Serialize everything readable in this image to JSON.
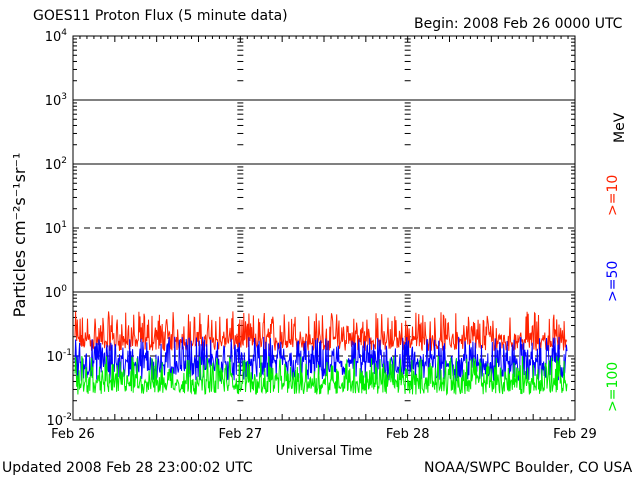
{
  "header": {
    "title": "GOES11 Proton Flux (5 minute data)",
    "begin": "Begin: 2008 Feb 26 0000 UTC"
  },
  "footer": {
    "updated": "Updated 2008 Feb 28 23:00:02 UTC",
    "credit": "NOAA/SWPC Boulder, CO USA"
  },
  "colors": {
    "ge10": "#ff2200",
    "ge50": "#0000ff",
    "ge100": "#00ee00",
    "axis": "#000000"
  },
  "legend": {
    "unit": "MeV",
    "items": [
      {
        "label": ">=10",
        "color": "#ff2200"
      },
      {
        "label": ">=50",
        "color": "#0000ff"
      },
      {
        "label": ">=100",
        "color": "#00ee00"
      }
    ]
  },
  "chart_data": {
    "type": "line",
    "title": "GOES11 Proton Flux (5 minute data)",
    "xlabel": "Universal Time",
    "ylabel": "Particles cm⁻²s⁻¹sr⁻¹",
    "yscale": "log",
    "ylim": [
      0.01,
      10000
    ],
    "xlim": [
      "2008-02-26T00:00",
      "2008-02-29T00:00"
    ],
    "x_ticks": [
      "Feb 26",
      "Feb 27",
      "Feb 28",
      "Feb 29"
    ],
    "y_ticks": [
      {
        "value": 10000,
        "label": "10",
        "exp": "4"
      },
      {
        "value": 1000,
        "label": "10",
        "exp": "3"
      },
      {
        "value": 100,
        "label": "10",
        "exp": "2"
      },
      {
        "value": 10,
        "label": "10",
        "exp": "1"
      },
      {
        "value": 1,
        "label": "10",
        "exp": "0"
      },
      {
        "value": 0.1,
        "label": "10",
        "exp": "-1"
      },
      {
        "value": 0.01,
        "label": "10",
        "exp": "-2"
      }
    ],
    "grid": true,
    "dashed_gridlines": [
      10,
      0.1
    ],
    "legend_placement": "right, rotated",
    "series": [
      {
        "name": ">=10 MeV",
        "color": "#ff2200",
        "typical": 0.18,
        "min": 0.12,
        "max": 0.5
      },
      {
        "name": ">=50 MeV",
        "color": "#0000ff",
        "typical": 0.08,
        "min": 0.04,
        "max": 0.2
      },
      {
        "name": ">=100 MeV",
        "color": "#00ee00",
        "typical": 0.04,
        "min": 0.025,
        "max": 0.1
      }
    ]
  }
}
